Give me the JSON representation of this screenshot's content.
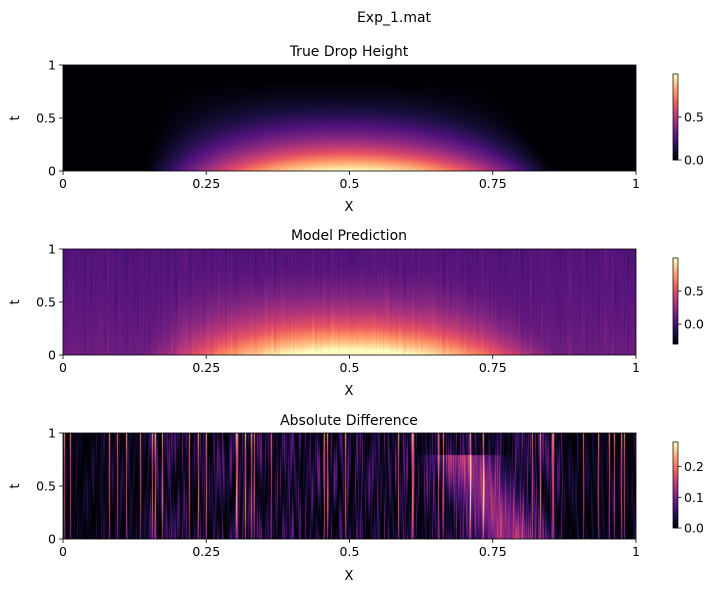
{
  "figure": {
    "title": "Exp_1.mat"
  },
  "colors": {
    "colormap": "magma",
    "background": "#ffffff",
    "axis": "#000000"
  },
  "chart_data": [
    {
      "type": "heatmap",
      "title": "True Drop Height",
      "xlabel": "X",
      "ylabel": "t",
      "xlim": [
        0,
        1
      ],
      "ylim": [
        0,
        1
      ],
      "xticks": [
        0,
        0.25,
        0.5,
        0.75,
        1
      ],
      "xtick_labels": [
        "0",
        "0.25",
        "0.5",
        "0.75",
        "1"
      ],
      "yticks": [
        0,
        0.5,
        1
      ],
      "ytick_labels": [
        "0",
        "0.5",
        "1"
      ],
      "colorbar": {
        "range": [
          0,
          1.0
        ],
        "ticks": [
          0,
          0.5
        ],
        "tick_labels": [
          "0.0",
          "0.5"
        ]
      },
      "field": {
        "kind": "drop",
        "peak": 1.0,
        "center": 0.5,
        "half_width_at_t0": 0.36,
        "max_t": 0.85
      }
    },
    {
      "type": "heatmap",
      "title": "Model Prediction",
      "xlabel": "X",
      "ylabel": "t",
      "xlim": [
        0,
        1
      ],
      "ylim": [
        0,
        1
      ],
      "xticks": [
        0,
        0.25,
        0.5,
        0.75,
        1
      ],
      "xtick_labels": [
        "0",
        "0.25",
        "0.5",
        "0.75",
        "1"
      ],
      "yticks": [
        0,
        0.5,
        1
      ],
      "ytick_labels": [
        "0",
        "0.5",
        "1"
      ],
      "colorbar": {
        "range": [
          -0.3,
          1.0
        ],
        "ticks": [
          0,
          0.5
        ],
        "tick_labels": [
          "0.0",
          "0.5"
        ]
      },
      "field": {
        "kind": "prediction",
        "peak": 1.0,
        "center": 0.5,
        "half_width_at_t0": 0.36,
        "noise": 0.12
      }
    },
    {
      "type": "heatmap",
      "title": "Absolute Difference",
      "xlabel": "X",
      "ylabel": "t",
      "xlim": [
        0,
        1
      ],
      "ylim": [
        0,
        1
      ],
      "xticks": [
        0,
        0.25,
        0.5,
        0.75,
        1
      ],
      "xtick_labels": [
        "0",
        "0.25",
        "0.5",
        "0.75",
        "1"
      ],
      "yticks": [
        0,
        0.5,
        1
      ],
      "ytick_labels": [
        "0",
        "0.5",
        "1"
      ],
      "colorbar": {
        "range": [
          0,
          0.28
        ],
        "ticks": [
          0,
          0.1,
          0.2
        ],
        "tick_labels": [
          "0.0",
          "0.1",
          "0.2"
        ]
      },
      "field": {
        "kind": "difference",
        "max": 0.28
      }
    }
  ]
}
